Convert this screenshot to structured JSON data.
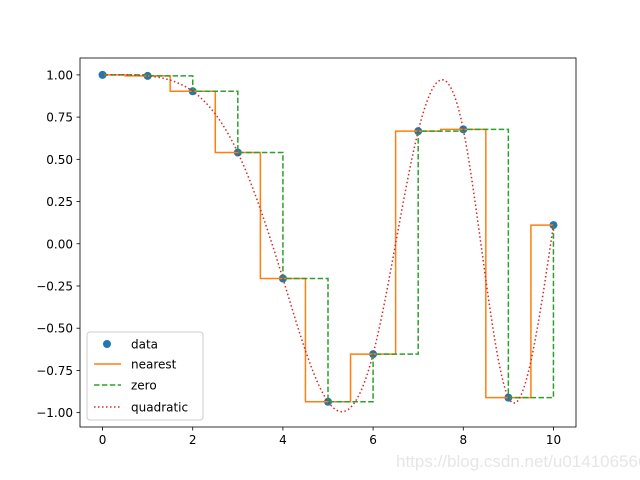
{
  "chart_data": {
    "type": "line",
    "title": "",
    "xlabel": "",
    "ylabel": "",
    "xlim": [
      -0.5,
      10.5
    ],
    "ylim": [
      -1.085,
      1.1
    ],
    "xticks": [
      0,
      2,
      4,
      6,
      8,
      10
    ],
    "xtick_labels": [
      "0",
      "2",
      "4",
      "6",
      "8",
      "10"
    ],
    "yticks": [
      1.0,
      0.75,
      0.5,
      0.25,
      0.0,
      -0.25,
      -0.5,
      -0.75,
      -1.0
    ],
    "ytick_labels": [
      "1.00",
      "0.75",
      "0.50",
      "0.25",
      "0.00",
      "−0.25",
      "−0.50",
      "−0.75",
      "−1.00"
    ],
    "grid": false,
    "legend_position": "lower-left",
    "x": [
      0,
      1,
      2,
      3,
      4,
      5,
      6,
      7,
      8,
      9,
      10
    ],
    "y": [
      1.0,
      0.9938,
      0.9029,
      0.5403,
      -0.2057,
      -0.9355,
      -0.6536,
      0.6669,
      0.6775,
      -0.9111,
      0.1107
    ],
    "series": [
      {
        "name": "data",
        "style": "markers",
        "color": "#1f77b4"
      },
      {
        "name": "nearest",
        "style": "solid",
        "color": "#ff7f0e"
      },
      {
        "name": "zero",
        "style": "dashed",
        "color": "#2ca02c"
      },
      {
        "name": "quadratic",
        "style": "dotted",
        "color": "#d62728"
      }
    ]
  },
  "watermark": "https://blog.csdn.net/u014106566"
}
